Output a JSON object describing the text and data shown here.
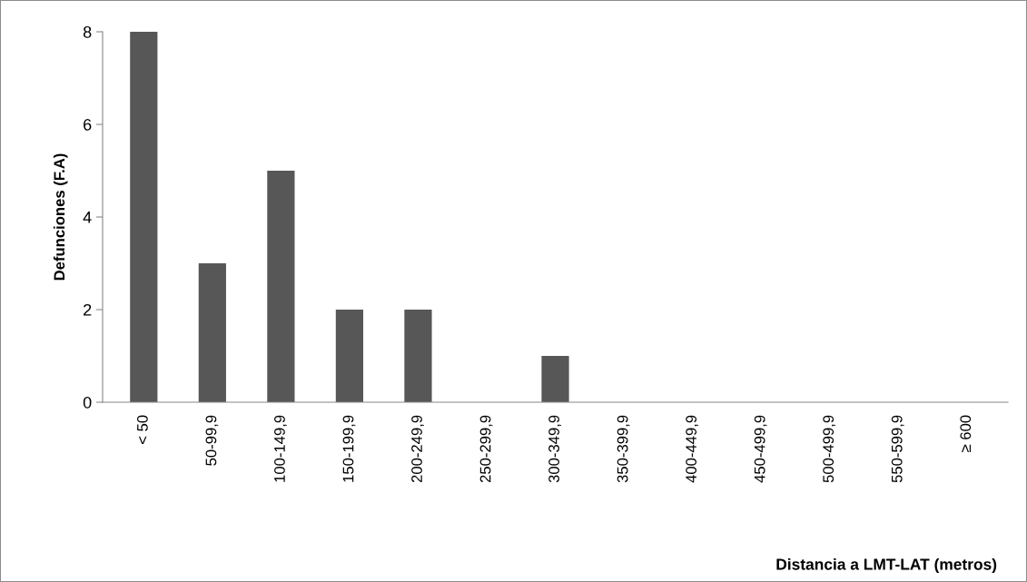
{
  "chart_data": {
    "type": "bar",
    "xlabel": "Distancia a LMT-LAT (metros)",
    "ylabel": "Defunciones (F.A)",
    "categories": [
      "< 50",
      "50-99,9",
      "100-149,9",
      "150-199,9",
      "200-249,9",
      "250-299,9",
      "300-349,9",
      "350-399,9",
      "400-449,9",
      "450-499,9",
      "500-499,9",
      "550-599,9",
      "≥ 600"
    ],
    "values": [
      8,
      3,
      5,
      2,
      2,
      0,
      1,
      0,
      0,
      0,
      0,
      0,
      0
    ],
    "color": "#575757",
    "ylim": [
      0,
      8
    ],
    "yticks": [
      0,
      2,
      4,
      6,
      8
    ],
    "grid": false,
    "legend": false
  }
}
